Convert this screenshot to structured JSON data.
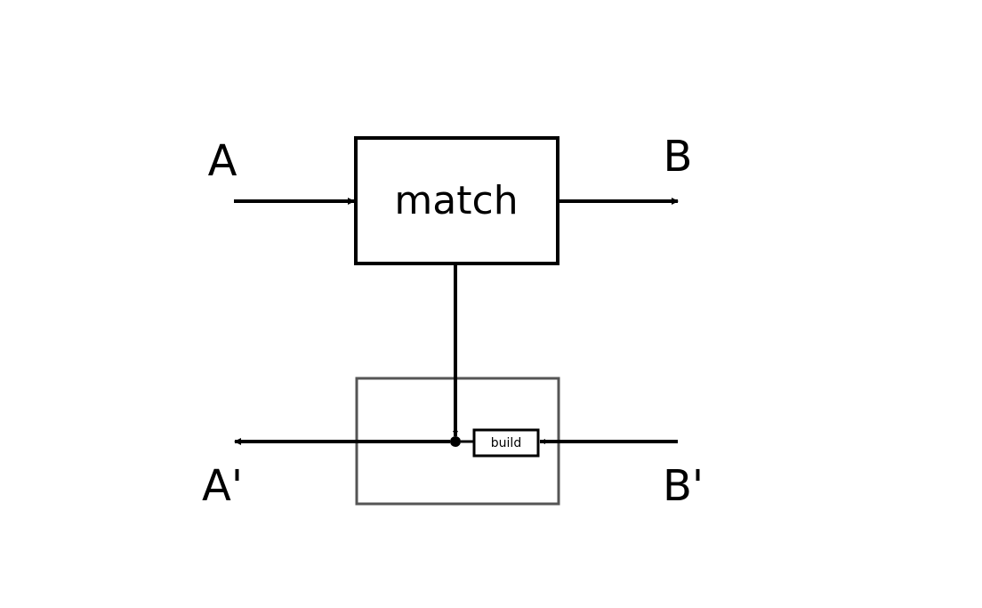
{
  "diagram": {
    "labels": {
      "input_top": "A",
      "output_top": "B",
      "output_bottom": "A'",
      "input_bottom": "B'"
    },
    "blocks": {
      "match": "match",
      "build": "build"
    },
    "colors": {
      "stroke": "#000000",
      "outer_box": "#555555",
      "background": "#ffffff"
    }
  }
}
